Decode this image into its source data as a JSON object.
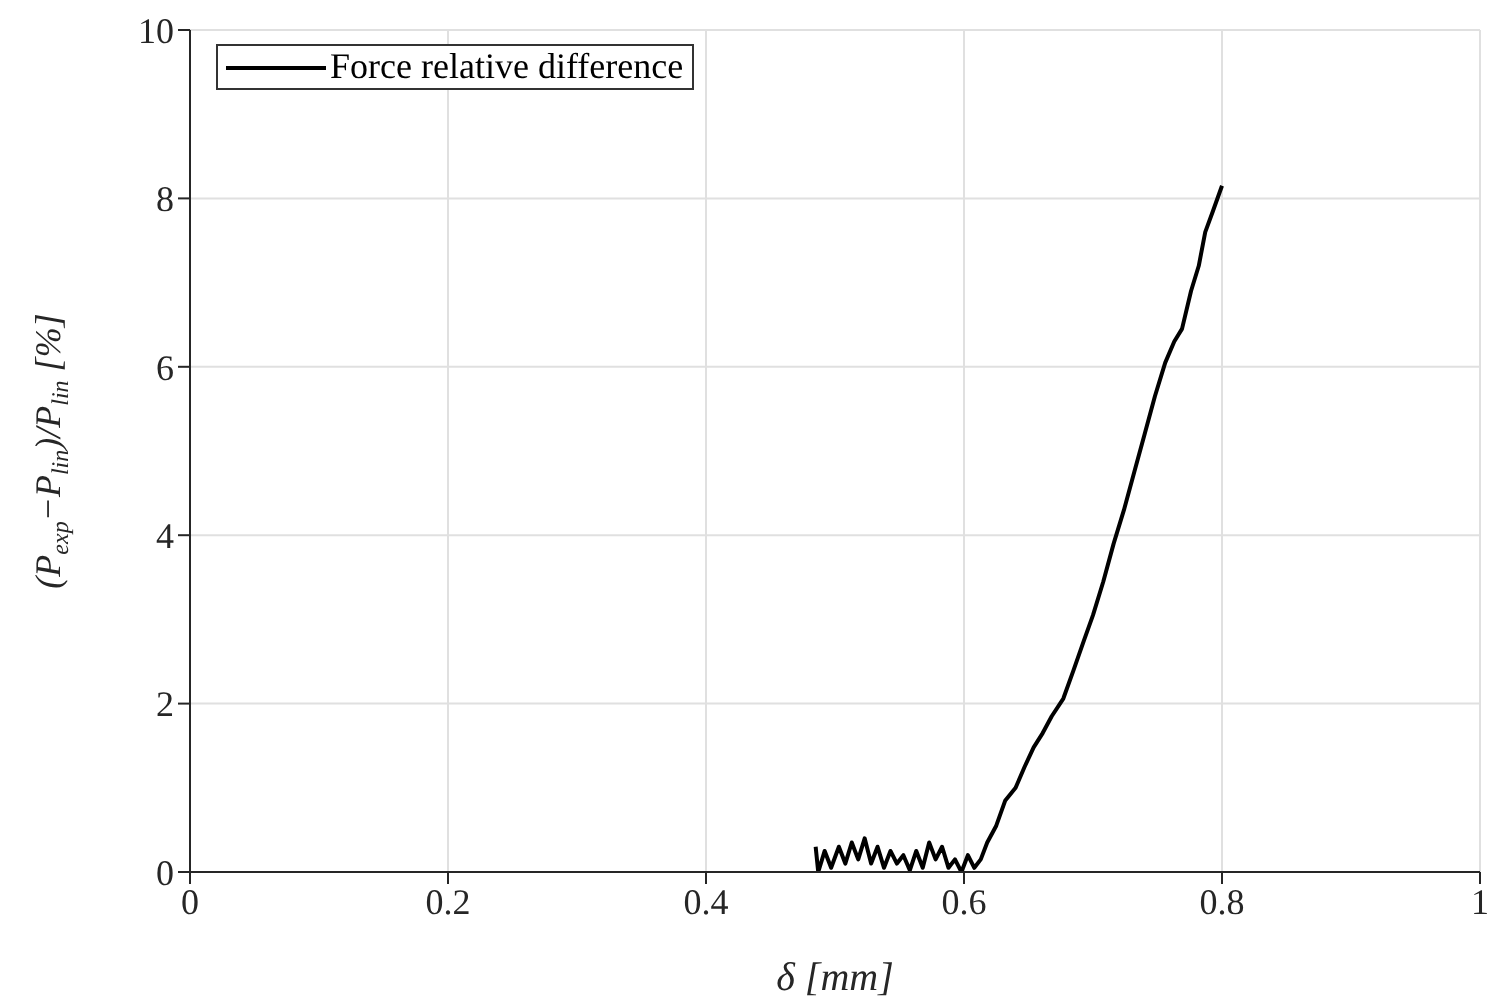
{
  "chart_data": {
    "type": "line",
    "xlabel": "δ [mm]",
    "ylabel": "(P$_{exp}$−P$_{lin}$)/P$_{lin}$ [%]",
    "xlim": [
      0,
      1
    ],
    "xticks": [
      0,
      0.2,
      0.4,
      0.6,
      0.8,
      1
    ],
    "ylim": [
      0,
      10
    ],
    "yticks": [
      0,
      2,
      4,
      6,
      8,
      10
    ],
    "grid": true,
    "legend": "top left",
    "marker": "none",
    "line_style": "solid",
    "x": [
      0.485,
      0.487,
      0.492,
      0.497,
      0.503,
      0.508,
      0.513,
      0.518,
      0.523,
      0.528,
      0.533,
      0.538,
      0.543,
      0.548,
      0.553,
      0.558,
      0.563,
      0.568,
      0.573,
      0.578,
      0.583,
      0.588,
      0.593,
      0.598,
      0.603,
      0.608,
      0.613,
      0.618,
      0.625,
      0.632,
      0.64,
      0.647,
      0.654,
      0.661,
      0.668,
      0.677,
      0.685,
      0.693,
      0.7,
      0.708,
      0.716,
      0.724,
      0.732,
      0.74,
      0.748,
      0.756,
      0.763,
      0.769,
      0.776,
      0.782,
      0.787,
      0.793,
      0.8
    ],
    "series": [
      {
        "name": "Force relative difference",
        "color": "#000000",
        "values": [
          0.3,
          0,
          0.25,
          0.05,
          0.3,
          0.1,
          0.35,
          0.15,
          0.4,
          0.1,
          0.3,
          0.05,
          0.25,
          0.1,
          0.2,
          0.02,
          0.25,
          0.05,
          0.35,
          0.15,
          0.3,
          0.05,
          0.15,
          0,
          0.2,
          0.05,
          0.15,
          0.35,
          0.55,
          0.85,
          1,
          1.25,
          1.48,
          1.65,
          1.85,
          2.06,
          2.4,
          2.75,
          3.05,
          3.45,
          3.9,
          4.3,
          4.75,
          5.2,
          5.65,
          6.05,
          6.3,
          6.45,
          6.9,
          7.2,
          7.6,
          7.85,
          8.15
        ]
      }
    ]
  }
}
